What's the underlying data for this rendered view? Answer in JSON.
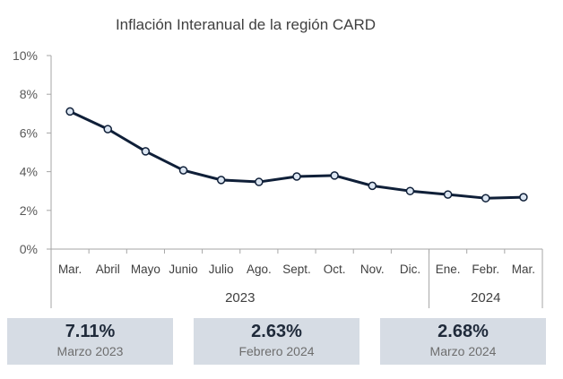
{
  "chart_data": {
    "type": "line",
    "title": "Inflación Interanual de la región CARD",
    "categories": [
      "Mar.",
      "Abril",
      "Mayo",
      "Junio",
      "Julio",
      "Ago.",
      "Sept.",
      "Oct.",
      "Nov.",
      "Dic.",
      "Ene.",
      "Febr.",
      "Mar."
    ],
    "category_groups": [
      {
        "label": "2023",
        "count": 10
      },
      {
        "label": "2024",
        "count": 3
      }
    ],
    "series": [
      {
        "values": [
          7.11,
          6.2,
          5.05,
          4.07,
          3.57,
          3.47,
          3.75,
          3.8,
          3.27,
          3.0,
          2.82,
          2.63,
          2.68
        ]
      }
    ],
    "ylim": [
      0,
      10
    ],
    "yticks": [
      0,
      2,
      4,
      6,
      8,
      10
    ],
    "ytick_labels": [
      "0%",
      "2%",
      "4%",
      "6%",
      "8%",
      "10%"
    ],
    "grid": false,
    "colors": {
      "line": "#0f1f38",
      "marker_fill": "#dce6f2",
      "axis": "#a6a6a6",
      "card": "#d6dce4"
    }
  },
  "cards": [
    {
      "value": "7.11%",
      "label": "Marzo 2023"
    },
    {
      "value": "2.63%",
      "label": "Febrero 2024"
    },
    {
      "value": "2.68%",
      "label": "Marzo 2024"
    }
  ]
}
